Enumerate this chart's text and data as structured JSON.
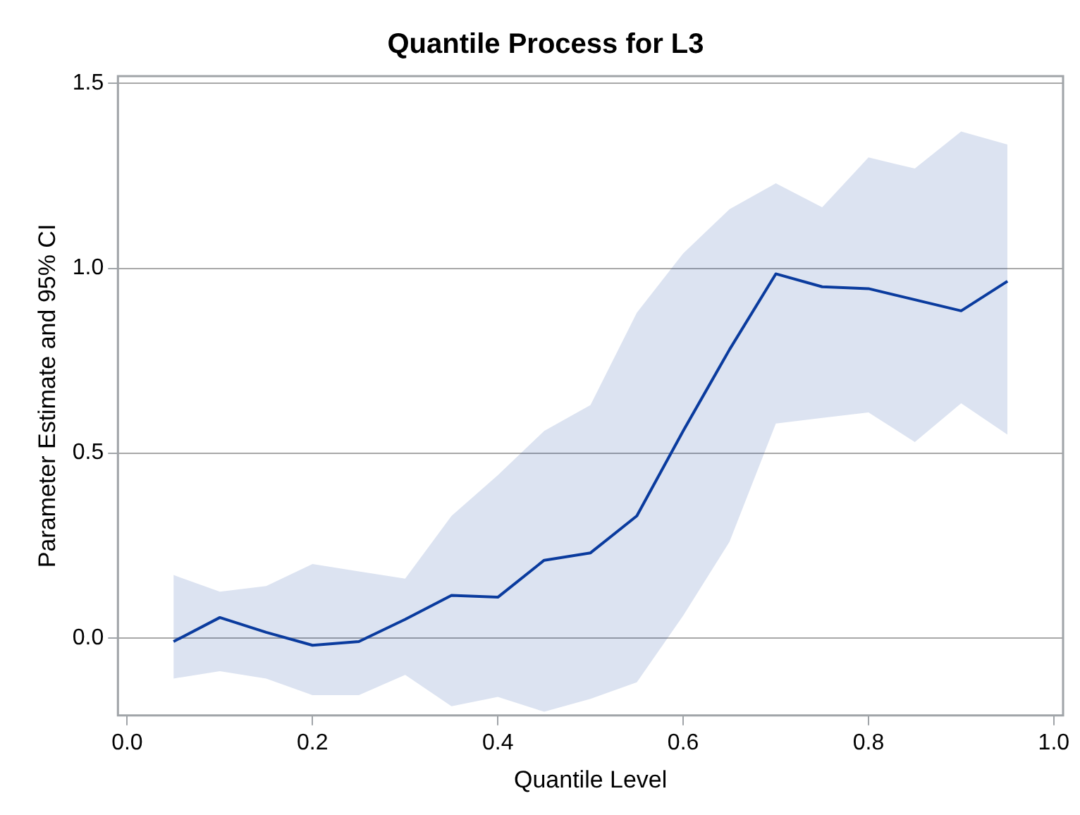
{
  "chart_data": {
    "type": "line",
    "title": "Quantile Process for L3",
    "xlabel": "Quantile Level",
    "ylabel": "Parameter Estimate and 95% CI",
    "x": [
      0.05,
      0.1,
      0.15,
      0.2,
      0.25,
      0.3,
      0.35,
      0.4,
      0.45,
      0.5,
      0.55,
      0.6,
      0.65,
      0.7,
      0.75,
      0.8,
      0.85,
      0.9,
      0.95
    ],
    "series": [
      {
        "color": "#0a3b9e",
        "values": [
          -0.01,
          0.055,
          0.015,
          -0.02,
          -0.01,
          0.05,
          0.115,
          0.11,
          0.21,
          0.23,
          0.33,
          0.56,
          0.78,
          0.985,
          0.95,
          0.945,
          0.915,
          0.885,
          0.965
        ],
        "lower": [
          -0.11,
          -0.09,
          -0.11,
          -0.155,
          -0.155,
          -0.1,
          -0.185,
          -0.16,
          -0.2,
          -0.165,
          -0.12,
          0.06,
          0.26,
          0.58,
          0.595,
          0.61,
          0.53,
          0.635,
          0.55
        ],
        "upper": [
          0.17,
          0.125,
          0.14,
          0.2,
          0.18,
          0.16,
          0.33,
          0.44,
          0.56,
          0.63,
          0.88,
          1.04,
          1.16,
          1.23,
          1.165,
          1.3,
          1.27,
          1.37,
          1.335
        ]
      }
    ],
    "xlim": [
      -0.01,
      1.01
    ],
    "xticks": [
      {
        "value": 0,
        "label": "0.0"
      },
      {
        "value": 0.2,
        "label": "0.2"
      },
      {
        "value": 0.4,
        "label": "0.4"
      },
      {
        "value": 0.6,
        "label": "0.6"
      },
      {
        "value": 0.8,
        "label": "0.8"
      },
      {
        "value": 1,
        "label": "1.0"
      }
    ],
    "ylim": [
      -0.21,
      1.52
    ],
    "yticks": [
      {
        "value": 0,
        "label": "0.0"
      },
      0.5,
      {
        "value": 1,
        "label": "1.0"
      },
      1.5
    ],
    "grid": "y",
    "legend": false,
    "marker": "none",
    "line_style": "solid"
  }
}
